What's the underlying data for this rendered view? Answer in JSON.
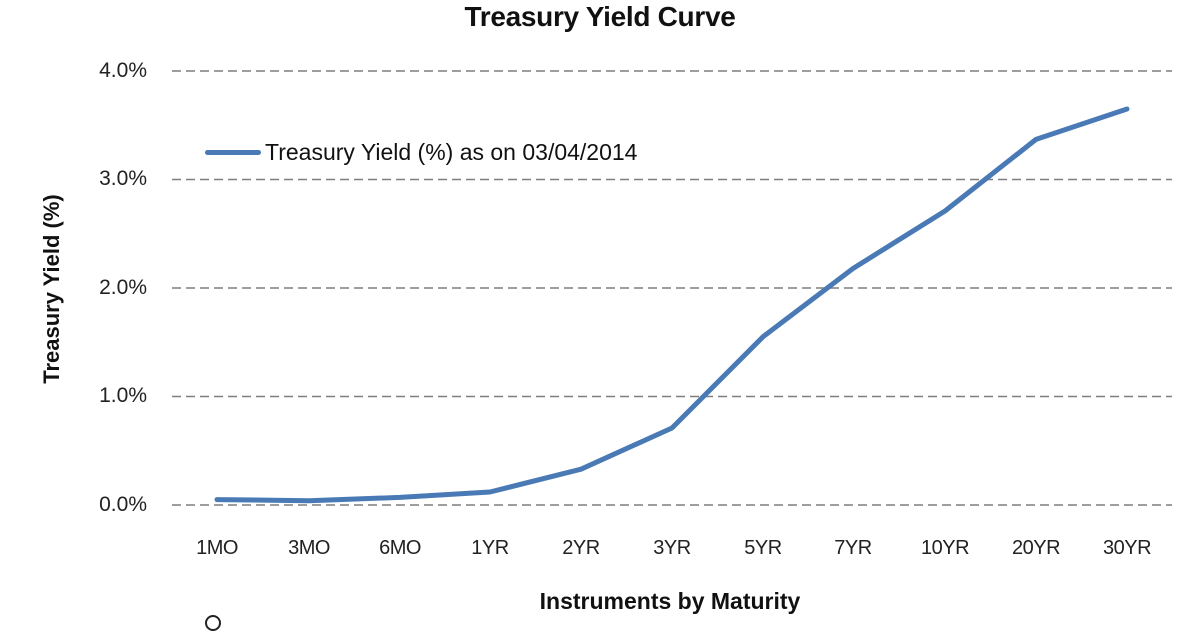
{
  "chart_data": {
    "type": "line",
    "title": "Treasury Yield Curve",
    "xlabel": "Instruments by Maturity",
    "ylabel": "Treasury Yield (%)",
    "categories": [
      "1MO",
      "3MO",
      "6MO",
      "1YR",
      "2YR",
      "3YR",
      "5YR",
      "7YR",
      "10YR",
      "20YR",
      "30YR"
    ],
    "series": [
      {
        "name": "Treasury Yield (%) as on 03/04/2014",
        "color": "#4a7ab5",
        "values": [
          0.05,
          0.04,
          0.07,
          0.12,
          0.33,
          0.71,
          1.55,
          2.18,
          2.71,
          3.37,
          3.65
        ]
      }
    ],
    "ylim": [
      0,
      4
    ],
    "yticks": [
      "0.0%",
      "1.0%",
      "2.0%",
      "3.0%",
      "4.0%"
    ],
    "grid": "horizontal dashed",
    "legend_position": "top-left inside plot"
  },
  "colors": {
    "line": "#4a7ab5",
    "grid": "#7f7f7f",
    "text": "#111111"
  }
}
